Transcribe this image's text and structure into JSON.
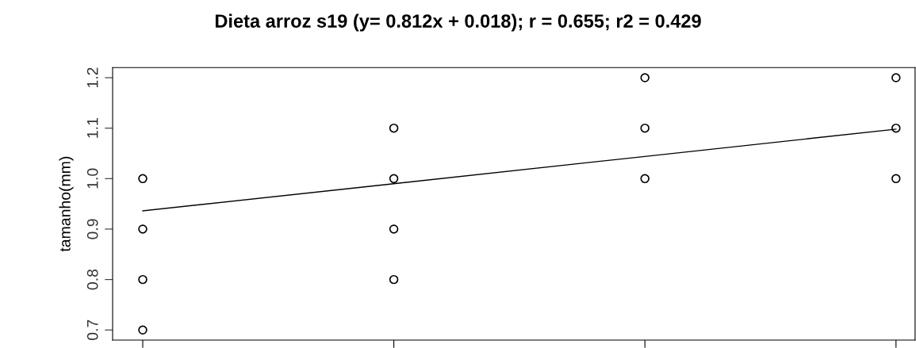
{
  "chart_data": {
    "type": "scatter",
    "title": "Dieta arroz s19 (y= 0.812x + 0.018); r = 0.655; r2 = 0.429",
    "ylabel": "tamanho(mm)",
    "categories": [
      null,
      null,
      null,
      null
    ],
    "ylim": [
      0.68,
      1.22
    ],
    "yticks": [
      0.7,
      0.8,
      0.9,
      {
        "value": 1.0,
        "label": "1.0"
      },
      1.1,
      1.2
    ],
    "tick_labels": "y",
    "marker": "circle",
    "series": [
      {
        "color": "#000000",
        "values": [
          1.0,
          1.1,
          1.2,
          1.2
        ]
      },
      {
        "color": "#000000",
        "values": [
          0.9,
          1.0,
          1.1,
          1.1
        ]
      },
      {
        "color": "#000000",
        "values": [
          0.8,
          0.9,
          1.0,
          1.0
        ]
      },
      {
        "color": "#000000",
        "values": [
          0.7,
          0.8,
          null,
          null
        ]
      },
      {
        "type": "line",
        "color": "#000000",
        "values": [
          0.936,
          0.99,
          1.044,
          1.098
        ],
        "line_style": "solid",
        "marker": "none"
      }
    ]
  }
}
